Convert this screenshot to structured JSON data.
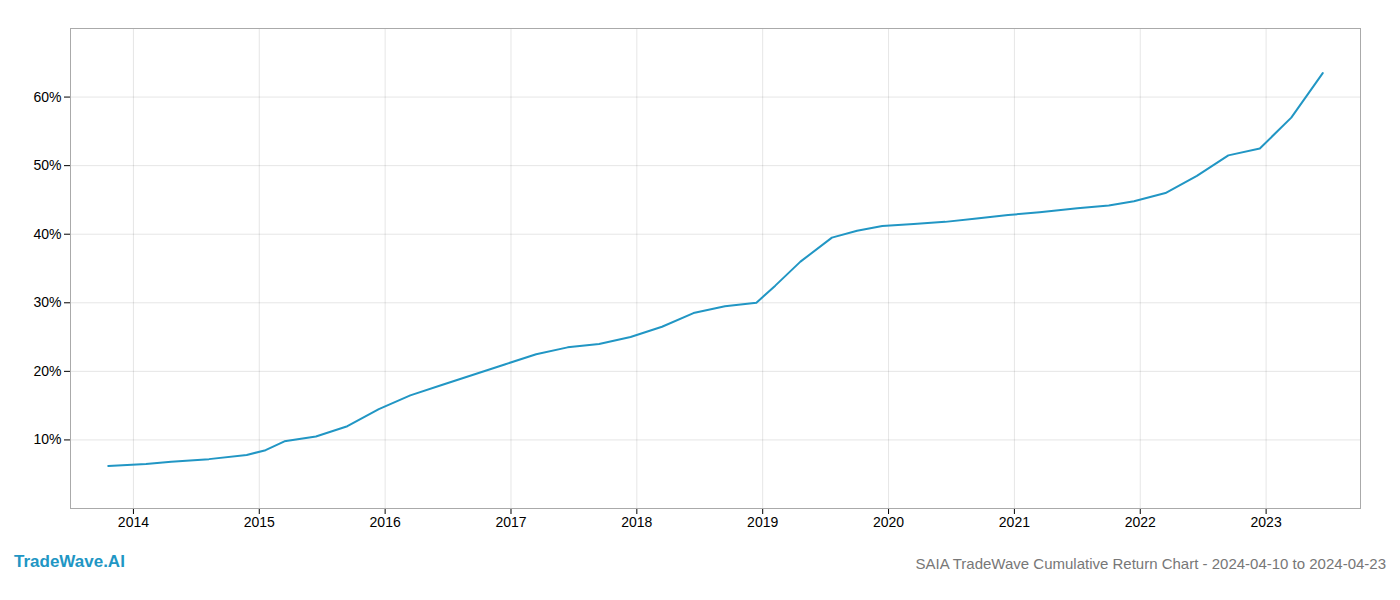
{
  "chart_data": {
    "type": "line",
    "title": "SAIA TradeWave Cumulative Return Chart - 2024-04-10 to 2024-04-23",
    "annotations": [
      "TradeWave.AI"
    ],
    "x": [
      2013.8,
      2014.1,
      2014.3,
      2014.6,
      2014.9,
      2015.05,
      2015.2,
      2015.45,
      2015.7,
      2015.95,
      2016.2,
      2016.45,
      2016.7,
      2016.95,
      2017.2,
      2017.45,
      2017.7,
      2017.95,
      2018.2,
      2018.45,
      2018.7,
      2018.95,
      2019.1,
      2019.3,
      2019.55,
      2019.75,
      2019.95,
      2020.2,
      2020.45,
      2020.7,
      2020.95,
      2021.2,
      2021.5,
      2021.75,
      2021.95,
      2022.2,
      2022.45,
      2022.7,
      2022.95,
      2023.2,
      2023.45
    ],
    "values": [
      6.2,
      6.5,
      6.8,
      7.2,
      7.8,
      8.5,
      9.8,
      10.5,
      12.0,
      14.5,
      16.5,
      18.0,
      19.5,
      21.0,
      22.5,
      23.5,
      24.0,
      25.0,
      26.5,
      28.5,
      29.5,
      30.0,
      32.5,
      36.0,
      39.5,
      40.5,
      41.2,
      41.5,
      41.8,
      42.3,
      42.8,
      43.2,
      43.8,
      44.2,
      44.8,
      46.0,
      48.5,
      51.5,
      52.5,
      57.0,
      63.5
    ],
    "color": "#2196c4",
    "xlim": [
      2013.5,
      2023.75
    ],
    "xticks": [
      2014,
      2015,
      2016,
      2017,
      2018,
      2019,
      2020,
      2021,
      2022,
      2023
    ],
    "ylim": [
      0,
      70
    ],
    "yticks": [
      {
        "value": 10,
        "label": "10%"
      },
      {
        "value": 20,
        "label": "20%"
      },
      {
        "value": 30,
        "label": "30%"
      },
      {
        "value": 40,
        "label": "40%"
      },
      {
        "value": 50,
        "label": "50%"
      },
      {
        "value": 60,
        "label": "60%"
      }
    ],
    "grid": true
  }
}
